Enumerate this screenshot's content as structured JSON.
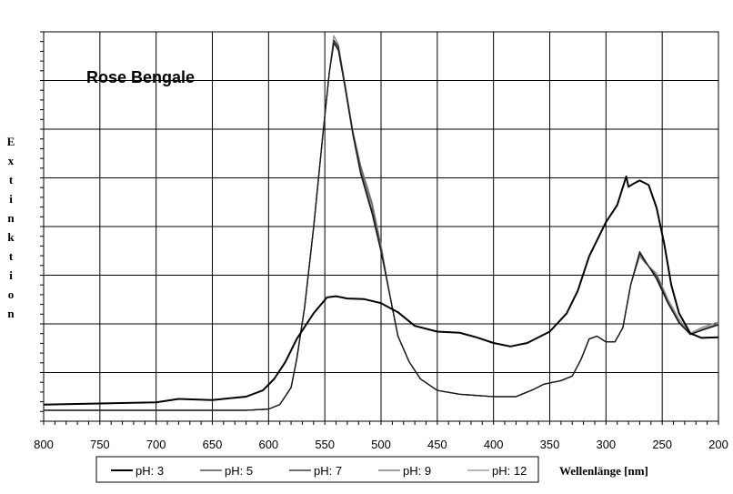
{
  "chart_data": {
    "type": "line",
    "title": "Rose Bengale",
    "xlabel": "Wellenlänge [nm]",
    "ylabel": "Extinktion",
    "xlim": [
      800,
      200
    ],
    "x_ticks": [
      "800",
      "750",
      "700",
      "650",
      "600",
      "550",
      "500",
      "450",
      "400",
      "350",
      "300",
      "250",
      "200"
    ],
    "grid": true,
    "legend_placement": "bottom",
    "series": [
      {
        "name": "pH: 3",
        "color": "#000000",
        "points": [
          [
            800,
            0.1
          ],
          [
            750,
            0.12
          ],
          [
            700,
            0.14
          ],
          [
            680,
            0.2
          ],
          [
            650,
            0.18
          ],
          [
            620,
            0.24
          ],
          [
            605,
            0.35
          ],
          [
            595,
            0.55
          ],
          [
            585,
            0.85
          ],
          [
            575,
            1.25
          ],
          [
            560,
            1.7
          ],
          [
            548,
            1.98
          ],
          [
            540,
            2.0
          ],
          [
            530,
            1.96
          ],
          [
            515,
            1.95
          ],
          [
            500,
            1.88
          ],
          [
            485,
            1.72
          ],
          [
            470,
            1.48
          ],
          [
            450,
            1.38
          ],
          [
            430,
            1.36
          ],
          [
            415,
            1.28
          ],
          [
            400,
            1.18
          ],
          [
            385,
            1.12
          ],
          [
            370,
            1.18
          ],
          [
            350,
            1.38
          ],
          [
            335,
            1.7
          ],
          [
            325,
            2.1
          ],
          [
            315,
            2.7
          ],
          [
            300,
            3.3
          ],
          [
            290,
            3.6
          ],
          [
            282,
            4.1
          ],
          [
            280,
            3.92
          ],
          [
            275,
            3.98
          ],
          [
            270,
            4.03
          ],
          [
            262,
            3.95
          ],
          [
            255,
            3.55
          ],
          [
            248,
            2.9
          ],
          [
            242,
            2.2
          ],
          [
            235,
            1.7
          ],
          [
            225,
            1.35
          ],
          [
            215,
            1.27
          ],
          [
            200,
            1.28
          ]
        ]
      },
      {
        "name": "pH: 5",
        "color": "#303030",
        "points": [
          [
            800,
            0.0
          ],
          [
            700,
            0.0
          ],
          [
            620,
            0.0
          ],
          [
            600,
            0.02
          ],
          [
            590,
            0.1
          ],
          [
            580,
            0.4
          ],
          [
            575,
            0.9
          ],
          [
            568,
            1.8
          ],
          [
            560,
            3.2
          ],
          [
            552,
            5.0
          ],
          [
            546,
            6.5
          ],
          [
            542,
            7.25
          ],
          [
            538,
            7.1
          ],
          [
            532,
            6.2
          ],
          [
            525,
            5.1
          ],
          [
            518,
            4.2
          ],
          [
            508,
            3.5
          ],
          [
            500,
            2.8
          ],
          [
            492,
            2.0
          ],
          [
            485,
            1.3
          ],
          [
            475,
            0.85
          ],
          [
            465,
            0.55
          ],
          [
            450,
            0.35
          ],
          [
            430,
            0.28
          ],
          [
            400,
            0.24
          ],
          [
            380,
            0.24
          ],
          [
            365,
            0.36
          ],
          [
            355,
            0.46
          ],
          [
            340,
            0.52
          ],
          [
            330,
            0.6
          ],
          [
            322,
            0.9
          ],
          [
            315,
            1.25
          ],
          [
            308,
            1.3
          ],
          [
            300,
            1.2
          ],
          [
            292,
            1.2
          ],
          [
            285,
            1.45
          ],
          [
            278,
            2.2
          ],
          [
            270,
            2.75
          ],
          [
            265,
            2.6
          ],
          [
            255,
            2.35
          ],
          [
            245,
            1.9
          ],
          [
            235,
            1.55
          ],
          [
            225,
            1.33
          ],
          [
            215,
            1.4
          ],
          [
            200,
            1.5
          ]
        ]
      },
      {
        "name": "pH: 7",
        "color": "#1a1a1a",
        "points": [
          [
            800,
            0.0
          ],
          [
            700,
            0.0
          ],
          [
            620,
            0.0
          ],
          [
            600,
            0.02
          ],
          [
            590,
            0.1
          ],
          [
            580,
            0.4
          ],
          [
            575,
            0.9
          ],
          [
            568,
            1.8
          ],
          [
            560,
            3.2
          ],
          [
            552,
            5.0
          ],
          [
            546,
            6.5
          ],
          [
            542,
            7.18
          ],
          [
            538,
            7.02
          ],
          [
            532,
            6.15
          ],
          [
            525,
            5.05
          ],
          [
            518,
            4.15
          ],
          [
            508,
            3.45
          ],
          [
            500,
            2.78
          ],
          [
            492,
            2.0
          ],
          [
            485,
            1.3
          ],
          [
            475,
            0.85
          ],
          [
            465,
            0.55
          ],
          [
            450,
            0.35
          ],
          [
            430,
            0.28
          ],
          [
            400,
            0.24
          ],
          [
            380,
            0.24
          ],
          [
            365,
            0.36
          ],
          [
            355,
            0.46
          ],
          [
            340,
            0.52
          ],
          [
            330,
            0.6
          ],
          [
            322,
            0.9
          ],
          [
            315,
            1.25
          ],
          [
            308,
            1.3
          ],
          [
            300,
            1.2
          ],
          [
            292,
            1.2
          ],
          [
            285,
            1.45
          ],
          [
            278,
            2.2
          ],
          [
            270,
            2.78
          ],
          [
            265,
            2.62
          ],
          [
            255,
            2.3
          ],
          [
            245,
            1.88
          ],
          [
            235,
            1.53
          ],
          [
            225,
            1.33
          ],
          [
            215,
            1.4
          ],
          [
            200,
            1.5
          ]
        ]
      },
      {
        "name": "pH: 9",
        "color": "#666666",
        "points": [
          [
            800,
            0.0
          ],
          [
            700,
            0.0
          ],
          [
            620,
            0.0
          ],
          [
            600,
            0.02
          ],
          [
            590,
            0.1
          ],
          [
            580,
            0.4
          ],
          [
            575,
            0.9
          ],
          [
            568,
            1.8
          ],
          [
            560,
            3.2
          ],
          [
            552,
            5.0
          ],
          [
            546,
            6.5
          ],
          [
            542,
            7.2
          ],
          [
            538,
            7.05
          ],
          [
            532,
            6.18
          ],
          [
            525,
            5.1
          ],
          [
            518,
            4.3
          ],
          [
            508,
            3.6
          ],
          [
            500,
            2.85
          ],
          [
            492,
            2.0
          ],
          [
            485,
            1.3
          ],
          [
            475,
            0.85
          ],
          [
            465,
            0.55
          ],
          [
            450,
            0.35
          ],
          [
            430,
            0.28
          ],
          [
            400,
            0.24
          ],
          [
            380,
            0.24
          ],
          [
            365,
            0.36
          ],
          [
            355,
            0.46
          ],
          [
            340,
            0.52
          ],
          [
            330,
            0.6
          ],
          [
            322,
            0.9
          ],
          [
            315,
            1.25
          ],
          [
            308,
            1.3
          ],
          [
            300,
            1.2
          ],
          [
            292,
            1.2
          ],
          [
            285,
            1.45
          ],
          [
            278,
            2.2
          ],
          [
            270,
            2.75
          ],
          [
            265,
            2.6
          ],
          [
            255,
            2.35
          ],
          [
            245,
            1.9
          ],
          [
            235,
            1.55
          ],
          [
            225,
            1.33
          ],
          [
            215,
            1.42
          ],
          [
            200,
            1.52
          ]
        ]
      },
      {
        "name": "pH: 12",
        "color": "#8c8c8c",
        "points": [
          [
            800,
            0.0
          ],
          [
            700,
            0.0
          ],
          [
            620,
            0.0
          ],
          [
            600,
            0.02
          ],
          [
            590,
            0.1
          ],
          [
            580,
            0.4
          ],
          [
            575,
            0.9
          ],
          [
            568,
            1.8
          ],
          [
            560,
            3.2
          ],
          [
            552,
            5.0
          ],
          [
            546,
            6.5
          ],
          [
            542,
            7.35
          ],
          [
            538,
            7.15
          ],
          [
            532,
            6.25
          ],
          [
            525,
            5.15
          ],
          [
            518,
            4.35
          ],
          [
            508,
            3.65
          ],
          [
            500,
            2.9
          ],
          [
            492,
            2.0
          ],
          [
            485,
            1.3
          ],
          [
            475,
            0.85
          ],
          [
            465,
            0.55
          ],
          [
            450,
            0.35
          ],
          [
            430,
            0.28
          ],
          [
            400,
            0.24
          ],
          [
            380,
            0.24
          ],
          [
            365,
            0.36
          ],
          [
            355,
            0.46
          ],
          [
            340,
            0.52
          ],
          [
            330,
            0.6
          ],
          [
            322,
            0.9
          ],
          [
            315,
            1.25
          ],
          [
            308,
            1.3
          ],
          [
            300,
            1.2
          ],
          [
            292,
            1.2
          ],
          [
            285,
            1.45
          ],
          [
            278,
            2.2
          ],
          [
            270,
            2.7
          ],
          [
            265,
            2.58
          ],
          [
            255,
            2.4
          ],
          [
            245,
            1.95
          ],
          [
            235,
            1.6
          ],
          [
            225,
            1.35
          ],
          [
            215,
            1.45
          ],
          [
            200,
            1.55
          ]
        ]
      }
    ]
  }
}
